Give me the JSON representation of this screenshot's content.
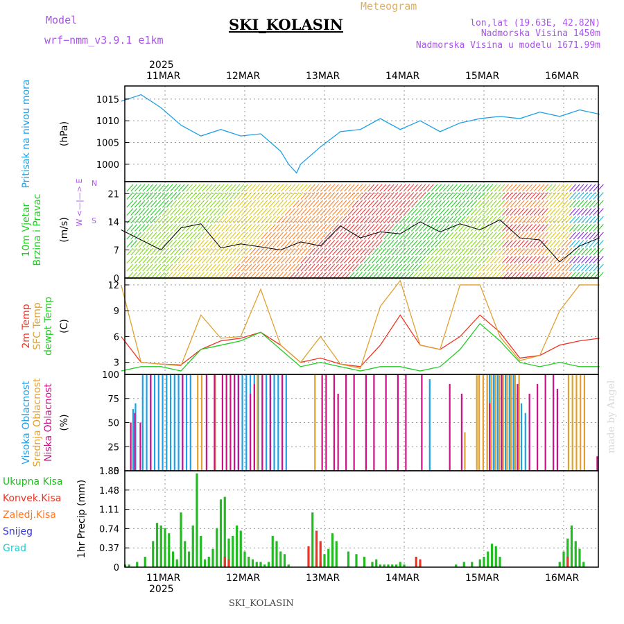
{
  "header": {
    "model_label": "Model",
    "model_name": "wrf−nmm_v3.9.1  e1km",
    "product": "Meteogram",
    "station": "SKI_KOLASIN",
    "lonlat": "lon,lat (19.63E, 42.82N)",
    "elevation": "Nadmorska Visina 1450m",
    "model_elevation": "Nadmorska Visina u modelu 1671.99m",
    "credit": "made by Angel",
    "footer_station": "SKI_KOLASIN"
  },
  "time_axis": {
    "year": "2025",
    "days": [
      "11MAR",
      "12MAR",
      "13MAR",
      "14MAR",
      "15MAR",
      "16MAR"
    ]
  },
  "colors": {
    "pressure": "#1ea0e6",
    "wind_speed": "#000000",
    "temp_2m": "#ee3322",
    "temp_sfc": "#e0a030",
    "dewpoint": "#22cc22",
    "cloud_high": "#1ea0e6",
    "cloud_mid": "#e0a030",
    "cloud_low": "#cc1188",
    "precip_total": "#22bb22",
    "precip_conv": "#ee3322",
    "precip_frz": "#ff7722",
    "snow": "#3333dd",
    "graupel": "#22cccc",
    "title_model": "#aa55ee"
  },
  "chart_data": [
    {
      "type": "line",
      "panel": "pressure",
      "labels": [
        "Pritisak na nivou mora",
        "(hPa)"
      ],
      "ylim": [
        996,
        1018
      ],
      "yticks": [
        "1015",
        "1010",
        "1005",
        "1000"
      ],
      "series": [
        {
          "name": "Pritisak na nivou mora",
          "x": [
            0,
            0.25,
            0.5,
            0.75,
            1.0,
            1.25,
            1.5,
            1.75,
            2.0,
            2.1,
            2.2,
            2.25,
            2.5,
            2.75,
            3.0,
            3.25,
            3.5,
            3.75,
            4.0,
            4.25,
            4.5,
            4.75,
            5.0,
            5.25,
            5.5,
            5.75,
            6.0
          ],
          "values": [
            1014.5,
            1016.0,
            1013.0,
            1009.0,
            1006.5,
            1008.0,
            1006.5,
            1007.0,
            1003.0,
            1000.0,
            998.0,
            1000.0,
            1004.0,
            1007.5,
            1008.0,
            1010.5,
            1008.0,
            1010.0,
            1007.5,
            1009.5,
            1010.5,
            1011.0,
            1010.5,
            1012.0,
            1011.0,
            1012.5,
            1011.5
          ]
        }
      ]
    },
    {
      "type": "line",
      "panel": "wind",
      "labels": [
        "10m Vjetar",
        "Brzina i Pravac",
        "(m/s)"
      ],
      "direction_key": [
        "N",
        "<—|—>",
        "W",
        "E",
        "S"
      ],
      "ylim": [
        0,
        24
      ],
      "yticks": [
        "21",
        "14",
        "7",
        "0"
      ],
      "series": [
        {
          "name": "Brzina",
          "x": [
            0,
            0.5,
            0.75,
            1.0,
            1.25,
            1.5,
            2.0,
            2.25,
            2.5,
            2.75,
            3.0,
            3.25,
            3.5,
            3.75,
            4.0,
            4.25,
            4.5,
            4.75,
            5.0,
            5.25,
            5.5,
            5.75,
            6.0
          ],
          "values": [
            12.0,
            7.0,
            12.5,
            13.5,
            7.5,
            8.5,
            7.0,
            9.0,
            8.0,
            13.0,
            10.0,
            11.5,
            11.0,
            14.0,
            11.5,
            13.5,
            12.0,
            14.5,
            10.0,
            9.5,
            4.0,
            8.0,
            10.0
          ]
        }
      ]
    },
    {
      "type": "line",
      "panel": "temperature",
      "labels": [
        "2m Temp",
        "SFC Temp",
        "dewpt Temp",
        "(C)"
      ],
      "ylim": [
        1.6,
        12.8
      ],
      "yticks": [
        "12",
        "9",
        "6",
        "3"
      ],
      "series": [
        {
          "name": "2m Temp",
          "x": [
            0,
            0.25,
            0.5,
            0.75,
            1.0,
            1.25,
            1.5,
            1.75,
            2.0,
            2.25,
            2.5,
            2.75,
            3.0,
            3.25,
            3.5,
            3.75,
            4.0,
            4.25,
            4.5,
            4.75,
            5.0,
            5.25,
            5.5,
            5.75,
            6.0
          ],
          "values": [
            6.0,
            3.0,
            2.8,
            2.7,
            4.5,
            5.5,
            5.8,
            6.5,
            5.0,
            3.0,
            3.5,
            2.8,
            2.5,
            5.0,
            8.5,
            5.0,
            4.5,
            6.0,
            8.5,
            6.5,
            3.5,
            3.8,
            5.0,
            5.5,
            5.8
          ]
        },
        {
          "name": "SFC Temp",
          "x": [
            0,
            0.25,
            0.5,
            0.75,
            1.0,
            1.25,
            1.5,
            1.75,
            2.0,
            2.25,
            2.5,
            2.75,
            3.0,
            3.25,
            3.5,
            3.75,
            4.0,
            4.25,
            4.5,
            4.75,
            5.0,
            5.25,
            5.5,
            5.75,
            6.0
          ],
          "values": [
            12.0,
            3.0,
            2.8,
            2.6,
            8.5,
            5.8,
            6.0,
            11.5,
            5.0,
            3.0,
            6.0,
            2.8,
            2.3,
            9.5,
            12.5,
            5.0,
            4.5,
            12.0,
            12.0,
            6.0,
            3.2,
            3.8,
            9.0,
            12.0,
            12.0
          ]
        },
        {
          "name": "dewpt Temp",
          "x": [
            0,
            0.25,
            0.5,
            0.75,
            1.0,
            1.25,
            1.5,
            1.75,
            2.0,
            2.25,
            2.5,
            2.75,
            3.0,
            3.25,
            3.5,
            3.75,
            4.0,
            4.25,
            4.5,
            4.75,
            5.0,
            5.25,
            5.5,
            5.75,
            6.0
          ],
          "values": [
            2.0,
            2.5,
            2.5,
            2.0,
            4.5,
            5.0,
            5.5,
            6.5,
            4.5,
            2.5,
            3.0,
            2.5,
            2.0,
            2.5,
            2.5,
            2.0,
            2.5,
            4.5,
            7.5,
            5.5,
            3.0,
            2.5,
            3.0,
            2.5,
            2.5
          ]
        }
      ]
    },
    {
      "type": "bar",
      "panel": "clouds",
      "labels": [
        "Visoka Oblacnost",
        "Srednja Oblacnost",
        "Niska Oblacnost",
        "(%)"
      ],
      "ylim": [
        0,
        100
      ],
      "yticks": [
        "100",
        "75",
        "50",
        "25",
        "0"
      ],
      "series": [
        {
          "name": "Visoka Oblacnost",
          "x": [
            0.15,
            0.18,
            0.27,
            0.32,
            0.37,
            0.42,
            0.47,
            0.52,
            0.57,
            0.62,
            0.67,
            0.72,
            0.77,
            0.82,
            0.87,
            1.47,
            1.52,
            1.57,
            1.62,
            1.67,
            1.72,
            1.77,
            1.82,
            1.87,
            1.92,
            1.97,
            2.02,
            2.07,
            3.87,
            4.62,
            4.67,
            4.72,
            4.77,
            4.82,
            4.87,
            4.92,
            4.97,
            5.02,
            5.07
          ],
          "values": [
            64,
            70,
            100,
            100,
            100,
            100,
            100,
            100,
            100,
            100,
            100,
            100,
            100,
            100,
            100,
            100,
            100,
            100,
            100,
            100,
            100,
            100,
            100,
            100,
            100,
            100,
            100,
            100,
            95,
            100,
            100,
            100,
            100,
            100,
            100,
            100,
            80,
            70,
            60
          ]
        },
        {
          "name": "Srednja Oblacnost",
          "x": [
            0.95,
            1.0,
            1.17,
            1.41,
            1.7,
            2.42,
            4.3,
            4.45,
            4.48,
            4.53,
            4.58,
            4.63,
            4.68,
            4.73,
            4.78,
            4.83,
            4.88,
            4.93,
            4.98,
            5.6,
            5.65,
            5.7,
            5.75,
            5.8
          ],
          "values": [
            100,
            100,
            100,
            100,
            100,
            100,
            40,
            100,
            100,
            100,
            100,
            100,
            100,
            100,
            100,
            100,
            100,
            100,
            100,
            100,
            100,
            100,
            100,
            100
          ]
        },
        {
          "name": "Niska Oblacnost",
          "x": [
            0.1,
            0.15,
            0.22,
            0.35,
            0.75,
            1.05,
            1.15,
            1.25,
            1.3,
            1.35,
            1.4,
            1.45,
            1.6,
            1.65,
            1.75,
            1.85,
            2.0,
            2.5,
            2.55,
            2.65,
            2.7,
            2.8,
            2.9,
            3.05,
            3.15,
            3.3,
            3.45,
            3.55,
            3.75,
            4.1,
            4.25,
            4.6,
            4.75,
            4.95,
            5.1,
            5.2,
            5.3,
            5.4,
            5.45,
            5.95
          ],
          "values": [
            50,
            60,
            50,
            100,
            100,
            100,
            100,
            100,
            100,
            100,
            100,
            100,
            80,
            90,
            100,
            100,
            100,
            100,
            100,
            100,
            80,
            100,
            100,
            100,
            100,
            100,
            100,
            100,
            100,
            90,
            80,
            70,
            100,
            90,
            80,
            90,
            100,
            100,
            85,
            15
          ]
        }
      ]
    },
    {
      "type": "bar",
      "panel": "precipitation",
      "labels": [
        "Ukupna Kisa",
        "Konvek.Kisa",
        "Zaledj.Kisa",
        "Snijeg",
        "Grad",
        "1hr Precip (mm)"
      ],
      "ylim": [
        0,
        1.85
      ],
      "yticks": [
        "1.85",
        "1.48",
        "1.11",
        "0.74",
        "0.37",
        "0"
      ],
      "series": [
        {
          "name": "Ukupna Kisa",
          "x": [
            0.05,
            0.1,
            0.2,
            0.3,
            0.4,
            0.45,
            0.5,
            0.55,
            0.6,
            0.65,
            0.7,
            0.75,
            0.8,
            0.85,
            0.9,
            0.95,
            1.0,
            1.05,
            1.1,
            1.15,
            1.2,
            1.25,
            1.3,
            1.35,
            1.4,
            1.45,
            1.5,
            1.55,
            1.6,
            1.65,
            1.7,
            1.75,
            1.8,
            1.85,
            1.9,
            1.95,
            2.0,
            2.05,
            2.1,
            2.4,
            2.45,
            2.5,
            2.55,
            2.6,
            2.65,
            2.7,
            2.85,
            2.95,
            3.05,
            3.15,
            3.2,
            3.25,
            3.3,
            3.35,
            3.4,
            3.45,
            3.5,
            3.55,
            3.75,
            4.2,
            4.3,
            4.4,
            4.5,
            4.55,
            4.6,
            4.65,
            4.7,
            4.75,
            5.5,
            5.55,
            5.6,
            5.65,
            5.7,
            5.75,
            5.8
          ],
          "values": [
            0.05,
            0.05,
            0.1,
            0.2,
            0.5,
            0.85,
            0.8,
            0.75,
            0.65,
            0.3,
            0.15,
            1.05,
            0.5,
            0.3,
            0.8,
            1.8,
            0.6,
            0.15,
            0.2,
            0.35,
            0.75,
            1.3,
            1.35,
            0.55,
            0.6,
            0.8,
            0.7,
            0.3,
            0.2,
            0.15,
            0.1,
            0.1,
            0.05,
            0.1,
            0.6,
            0.5,
            0.3,
            0.25,
            0.05,
            1.05,
            0.2,
            0.1,
            0.25,
            0.35,
            0.65,
            0.5,
            0.3,
            0.25,
            0.2,
            0.1,
            0.15,
            0.05,
            0.05,
            0.05,
            0.05,
            0.05,
            0.1,
            0.05,
            0.05,
            0.05,
            0.1,
            0.1,
            0.15,
            0.2,
            0.3,
            0.45,
            0.4,
            0.2,
            0.1,
            0.3,
            0.55,
            0.8,
            0.5,
            0.35,
            0.1
          ]
        },
        {
          "name": "Konvek.Kisa",
          "x": [
            1.3,
            1.35,
            2.35,
            2.45,
            2.5,
            3.7,
            3.75,
            5.6
          ],
          "values": [
            0.2,
            0.15,
            0.4,
            0.7,
            0.5,
            0.2,
            0.15,
            0.2
          ]
        }
      ]
    }
  ]
}
